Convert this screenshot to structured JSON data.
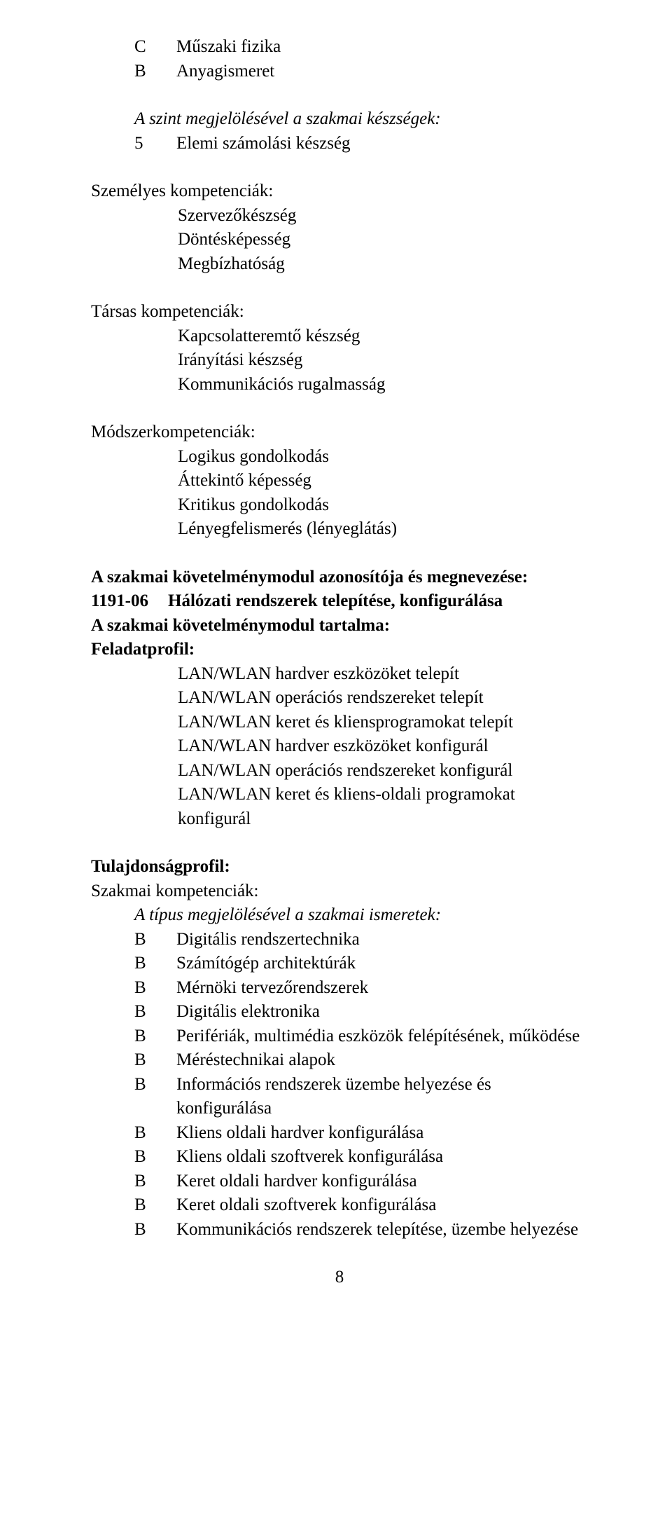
{
  "top_list": [
    {
      "grade": "C",
      "text": "Műszaki fizika"
    },
    {
      "grade": "B",
      "text": "Anyagismeret"
    }
  ],
  "skill_level": {
    "heading": "A szint megjelölésével a szakmai készségek:",
    "items": [
      {
        "grade": "5",
        "text": "Elemi számolási készség"
      }
    ]
  },
  "personal": {
    "heading": "Személyes kompetenciák:",
    "items": [
      "Szervezőkészség",
      "Döntésképesség",
      "Megbízhatóság"
    ]
  },
  "social": {
    "heading": "Társas kompetenciák:",
    "items": [
      "Kapcsolatteremtő készség",
      "Irányítási készség",
      "Kommunikációs rugalmasság"
    ]
  },
  "method": {
    "heading": "Módszerkompetenciák:",
    "items": [
      "Logikus gondolkodás",
      "Áttekintő képesség",
      "Kritikus gondolkodás",
      "Lényegfelismerés (lényeglátás)"
    ]
  },
  "module": {
    "line1": "A szakmai követelménymodul azonosítója és megnevezése:",
    "code": "1191-06",
    "title": "Hálózati rendszerek telepítése, konfigurálása",
    "line3": "A szakmai követelménymodul tartalma:",
    "feladatprofil_label": "Feladatprofil:",
    "tasks": [
      "LAN/WLAN hardver eszközöket telepít",
      "LAN/WLAN operációs rendszereket telepít",
      "LAN/WLAN keret és kliensprogramokat telepít",
      "LAN/WLAN hardver eszközöket konfigurál",
      "LAN/WLAN operációs rendszereket konfigurál",
      "LAN/WLAN keret és kliens-oldali programokat konfigurál"
    ]
  },
  "property": {
    "heading": "Tulajdonságprofil:",
    "sub": "Szakmai kompetenciák:",
    "knowledge_heading": "A típus megjelölésével a szakmai ismeretek:",
    "items": [
      {
        "grade": "B",
        "text": "Digitális rendszertechnika"
      },
      {
        "grade": "B",
        "text": "Számítógép architektúrák"
      },
      {
        "grade": "B",
        "text": "Mérnöki tervezőrendszerek"
      },
      {
        "grade": "B",
        "text": "Digitális elektronika"
      },
      {
        "grade": "B",
        "text": "Perifériák, multimédia eszközök felépítésének, működése"
      },
      {
        "grade": "B",
        "text": "Méréstechnikai alapok"
      },
      {
        "grade": "B",
        "text": "Információs rendszerek üzembe helyezése és konfigurálása"
      },
      {
        "grade": "B",
        "text": "Kliens oldali hardver konfigurálása"
      },
      {
        "grade": "B",
        "text": "Kliens oldali szoftverek konfigurálása"
      },
      {
        "grade": "B",
        "text": "Keret oldali hardver konfigurálása"
      },
      {
        "grade": "B",
        "text": "Keret oldali szoftverek konfigurálása"
      },
      {
        "grade": "B",
        "text": "Kommunikációs rendszerek telepítése, üzembe helyezése"
      }
    ]
  },
  "page_number": "8"
}
